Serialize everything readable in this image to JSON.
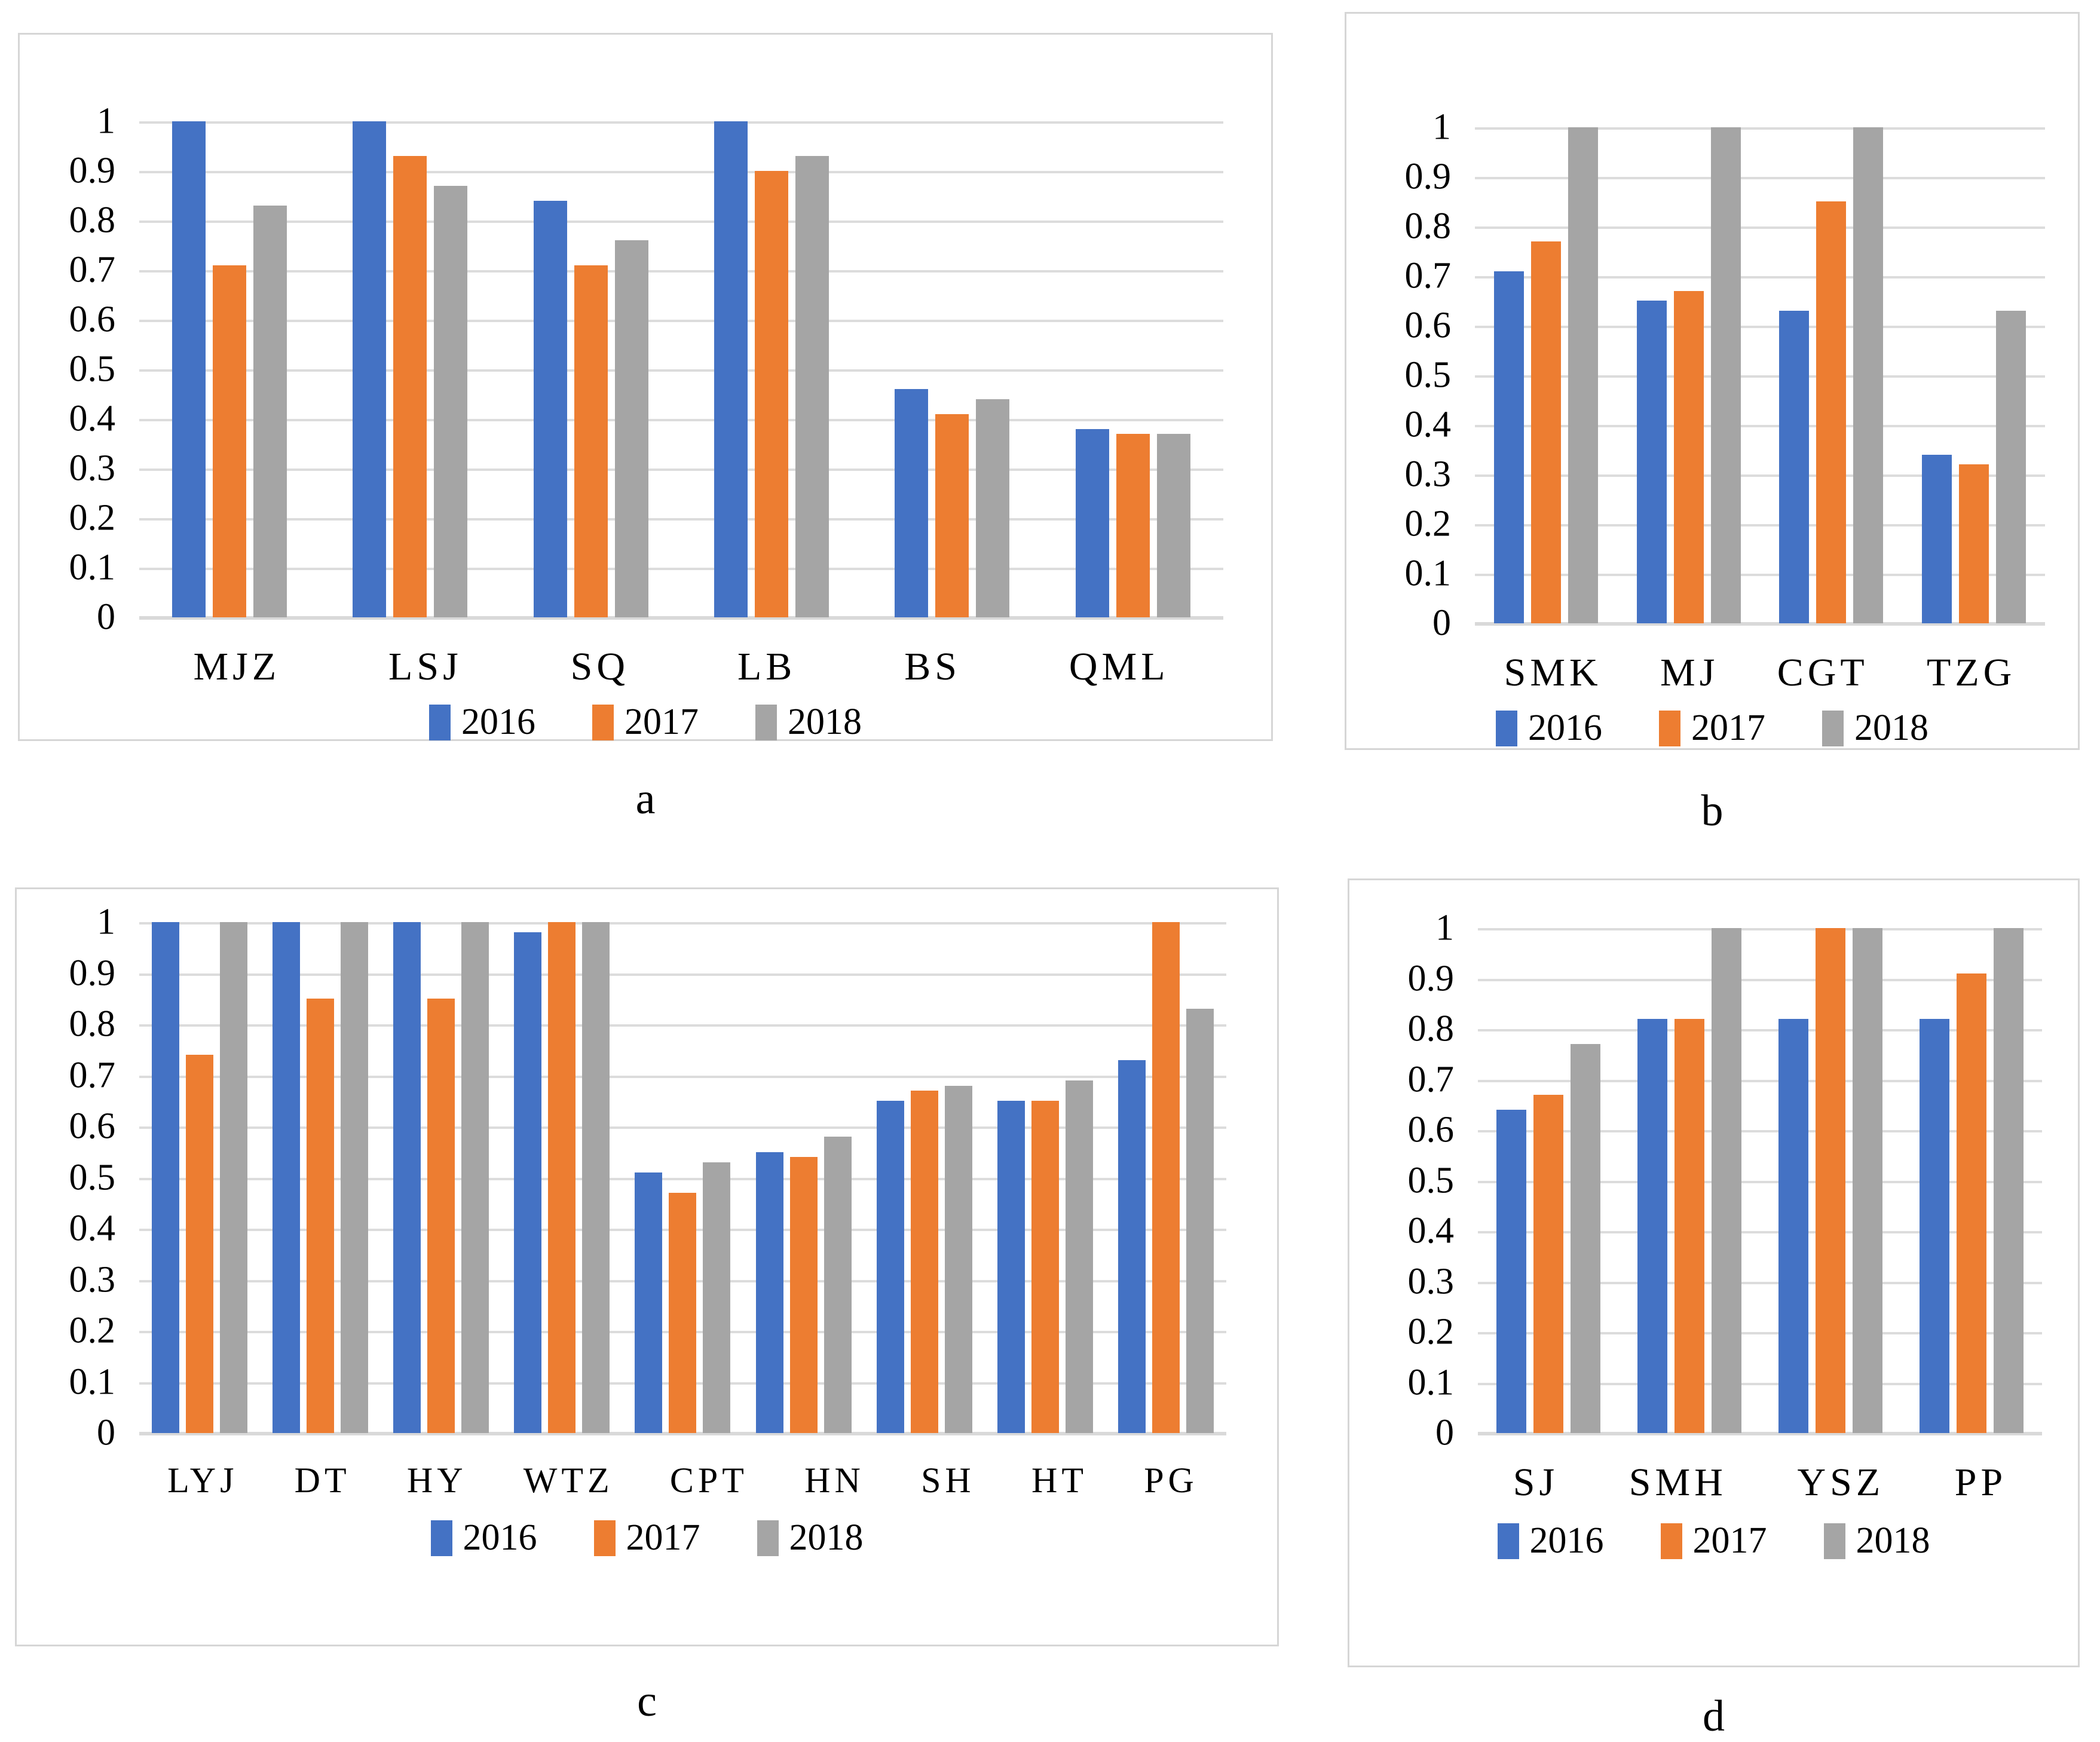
{
  "figure": {
    "background": "#ffffff",
    "panel_border_color": "#d6d6d6",
    "gridline_color": "#dcdcdc",
    "axis_color": "#d9d9d9"
  },
  "legend": {
    "labels": [
      "2016",
      "2017",
      "2018"
    ],
    "colors": [
      "#4472C4",
      "#ED7D31",
      "#A5A5A5"
    ],
    "position": "bottom-center"
  },
  "chart_data": [
    {
      "type": "bar",
      "caption": "a",
      "categories": [
        "MJZ",
        "LSJ",
        "SQ",
        "LB",
        "BS",
        "QML"
      ],
      "series": [
        {
          "name": "2016",
          "color": "#4472C4",
          "values": [
            1.0,
            1.0,
            0.84,
            1.0,
            0.46,
            0.38
          ]
        },
        {
          "name": "2017",
          "color": "#ED7D31",
          "values": [
            0.71,
            0.93,
            0.71,
            0.9,
            0.41,
            0.37
          ]
        },
        {
          "name": "2018",
          "color": "#A5A5A5",
          "values": [
            0.83,
            0.87,
            0.76,
            0.93,
            0.44,
            0.37
          ]
        }
      ],
      "xlabel": "",
      "ylabel": "",
      "ylim": [
        0,
        1
      ],
      "ytick_step": 0.1,
      "y_ticks": [
        "1",
        "0.9",
        "0.8",
        "0.7",
        "0.6",
        "0.5",
        "0.4",
        "0.3",
        "0.2",
        "0.1",
        "0"
      ],
      "grid": true,
      "legend_position": "bottom"
    },
    {
      "type": "bar",
      "caption": "b",
      "categories": [
        "SMK",
        "MJ",
        "CGT",
        "TZG"
      ],
      "series": [
        {
          "name": "2016",
          "color": "#4472C4",
          "values": [
            0.71,
            0.65,
            0.63,
            0.34
          ]
        },
        {
          "name": "2017",
          "color": "#ED7D31",
          "values": [
            0.77,
            0.67,
            0.85,
            0.32
          ]
        },
        {
          "name": "2018",
          "color": "#A5A5A5",
          "values": [
            1.0,
            1.0,
            1.0,
            0.63
          ]
        }
      ],
      "xlabel": "",
      "ylabel": "",
      "ylim": [
        0,
        1
      ],
      "ytick_step": 0.1,
      "y_ticks": [
        "1",
        "0.9",
        "0.8",
        "0.7",
        "0.6",
        "0.5",
        "0.4",
        "0.3",
        "0.2",
        "0.1",
        "0"
      ],
      "grid": true,
      "legend_position": "bottom"
    },
    {
      "type": "bar",
      "caption": "c",
      "categories": [
        "LYJ",
        "DT",
        "HY",
        "WTZ",
        "CPT",
        "HN",
        "SH",
        "HT",
        "PG"
      ],
      "series": [
        {
          "name": "2016",
          "color": "#4472C4",
          "values": [
            1.0,
            1.0,
            1.0,
            0.98,
            0.51,
            0.55,
            0.65,
            0.65,
            0.73
          ]
        },
        {
          "name": "2017",
          "color": "#ED7D31",
          "values": [
            0.74,
            0.85,
            0.85,
            1.0,
            0.47,
            0.54,
            0.67,
            0.65,
            1.0
          ]
        },
        {
          "name": "2018",
          "color": "#A5A5A5",
          "values": [
            1.0,
            1.0,
            1.0,
            1.0,
            0.53,
            0.58,
            0.68,
            0.69,
            0.83
          ]
        }
      ],
      "xlabel": "",
      "ylabel": "",
      "ylim": [
        0,
        1
      ],
      "ytick_step": 0.1,
      "y_ticks": [
        "1",
        "0.9",
        "0.8",
        "0.7",
        "0.6",
        "0.5",
        "0.4",
        "0.3",
        "0.2",
        "0.1",
        "0"
      ],
      "grid": true,
      "legend_position": "bottom"
    },
    {
      "type": "bar",
      "caption": "d",
      "categories": [
        "SJ",
        "SMH",
        "YSZ",
        "PP"
      ],
      "series": [
        {
          "name": "2016",
          "color": "#4472C4",
          "values": [
            0.64,
            0.82,
            0.82,
            0.82
          ]
        },
        {
          "name": "2017",
          "color": "#ED7D31",
          "values": [
            0.67,
            0.82,
            1.0,
            0.91
          ]
        },
        {
          "name": "2018",
          "color": "#A5A5A5",
          "values": [
            0.77,
            1.0,
            1.0,
            1.0
          ]
        }
      ],
      "xlabel": "",
      "ylabel": "",
      "ylim": [
        0,
        1
      ],
      "ytick_step": 0.1,
      "y_ticks": [
        "1",
        "0.9",
        "0.8",
        "0.7",
        "0.6",
        "0.5",
        "0.4",
        "0.3",
        "0.2",
        "0.1",
        "0"
      ],
      "grid": true,
      "legend_position": "bottom"
    }
  ]
}
